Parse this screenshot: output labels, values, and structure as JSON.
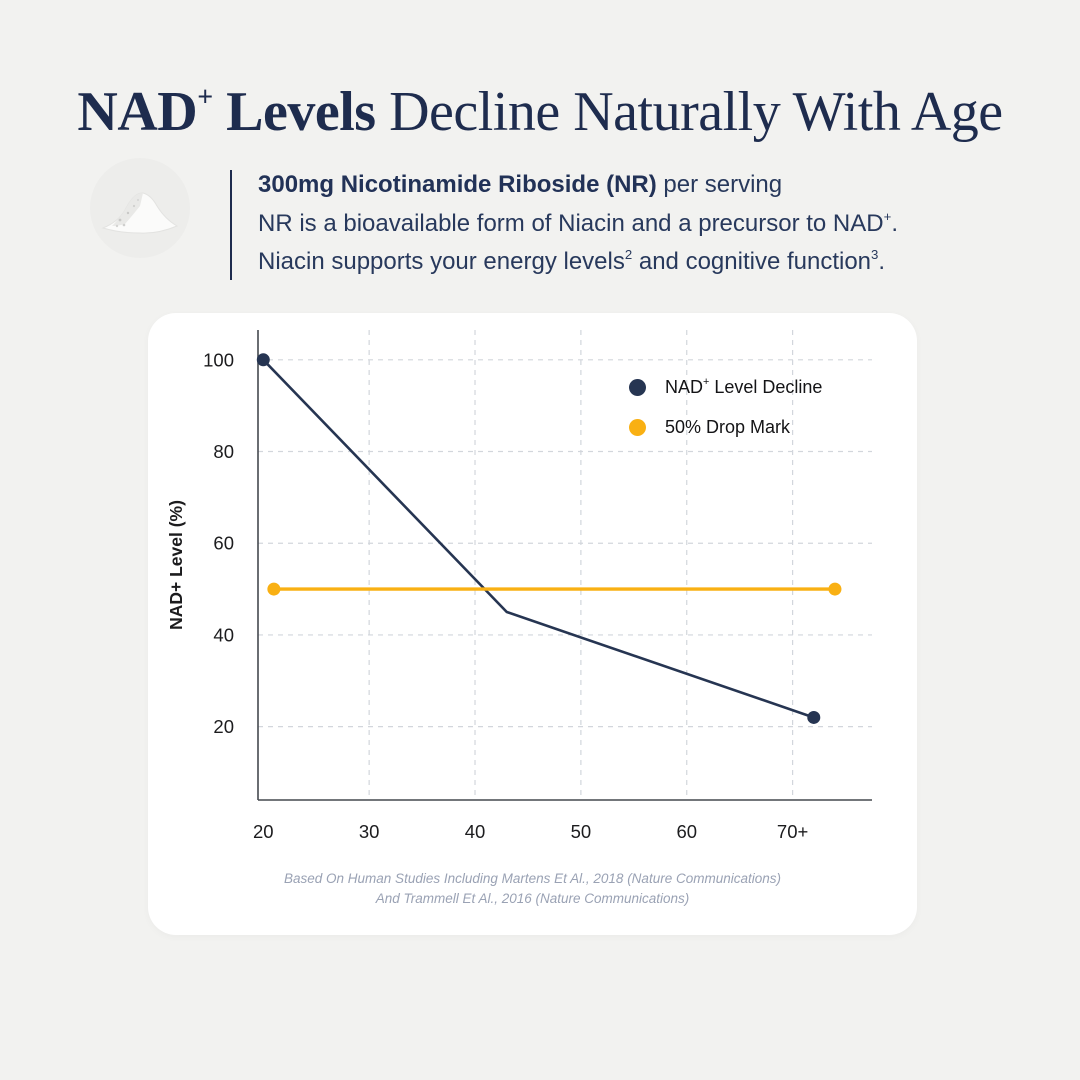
{
  "title": {
    "bold_main": "NAD",
    "bold_sup": "+",
    "bold_tail": " Levels",
    "regular_tail": " Decline Naturally With Age"
  },
  "intro": {
    "image_name": "nr-powder-photo",
    "line1_bold": "300mg Nicotinamide Riboside (NR)",
    "line1_rest": " per serving",
    "line2_pre": "NR is a bioavailable form of Niacin and a precursor to NAD",
    "line2_sup": "+",
    "line2_end": ".",
    "line3_pre": "Niacin supports your energy levels",
    "line3_sup1": "2",
    "line3_mid": " and cognitive function",
    "line3_sup2": "3",
    "line3_end": "."
  },
  "legend": {
    "item1_pre": "NAD",
    "item1_sup": "+",
    "item1_post": " Level Decline",
    "item2": "50% Drop Mark"
  },
  "chart_data": {
    "type": "line",
    "title": "",
    "xlabel": "",
    "ylabel": "NAD+ Level (%)",
    "x_tick_labels": [
      "20",
      "30",
      "40",
      "50",
      "60",
      "70+"
    ],
    "x_tick_values": [
      20,
      30,
      40,
      50,
      60,
      70
    ],
    "x_gridline_values": [
      30,
      40,
      50,
      60,
      70
    ],
    "y_ticks": [
      20,
      40,
      60,
      80,
      100
    ],
    "xlim": [
      19.5,
      77.5
    ],
    "ylim": [
      4,
      106.5
    ],
    "grid": "dashed",
    "legend_position": "top-right",
    "series": [
      {
        "name": "NAD+ Level Decline",
        "color": "#263552",
        "points": [
          [
            20,
            100
          ],
          [
            43,
            45
          ],
          [
            72,
            22
          ]
        ],
        "markers": "ends"
      },
      {
        "name": "50% Drop Mark",
        "color": "#f9b013",
        "points": [
          [
            21,
            50
          ],
          [
            74,
            50
          ]
        ],
        "markers": "ends"
      }
    ]
  },
  "caption": {
    "line1": "Based On Human Studies Including Martens Et Al., 2018 (Nature Communications)",
    "line2": "And Trammell Et Al., 2016 (Nature Communications)"
  },
  "colors": {
    "page_bg": "#f2f2f0",
    "card_bg": "#ffffff",
    "navy": "#1e2c4e",
    "body_text_navy": "#28395c",
    "line_navy": "#263552",
    "accent_yellow": "#f9b013",
    "caption_gray": "#9aa2b4",
    "grid_gray": "#d2d6dc",
    "axis_gray": "#45494f"
  }
}
